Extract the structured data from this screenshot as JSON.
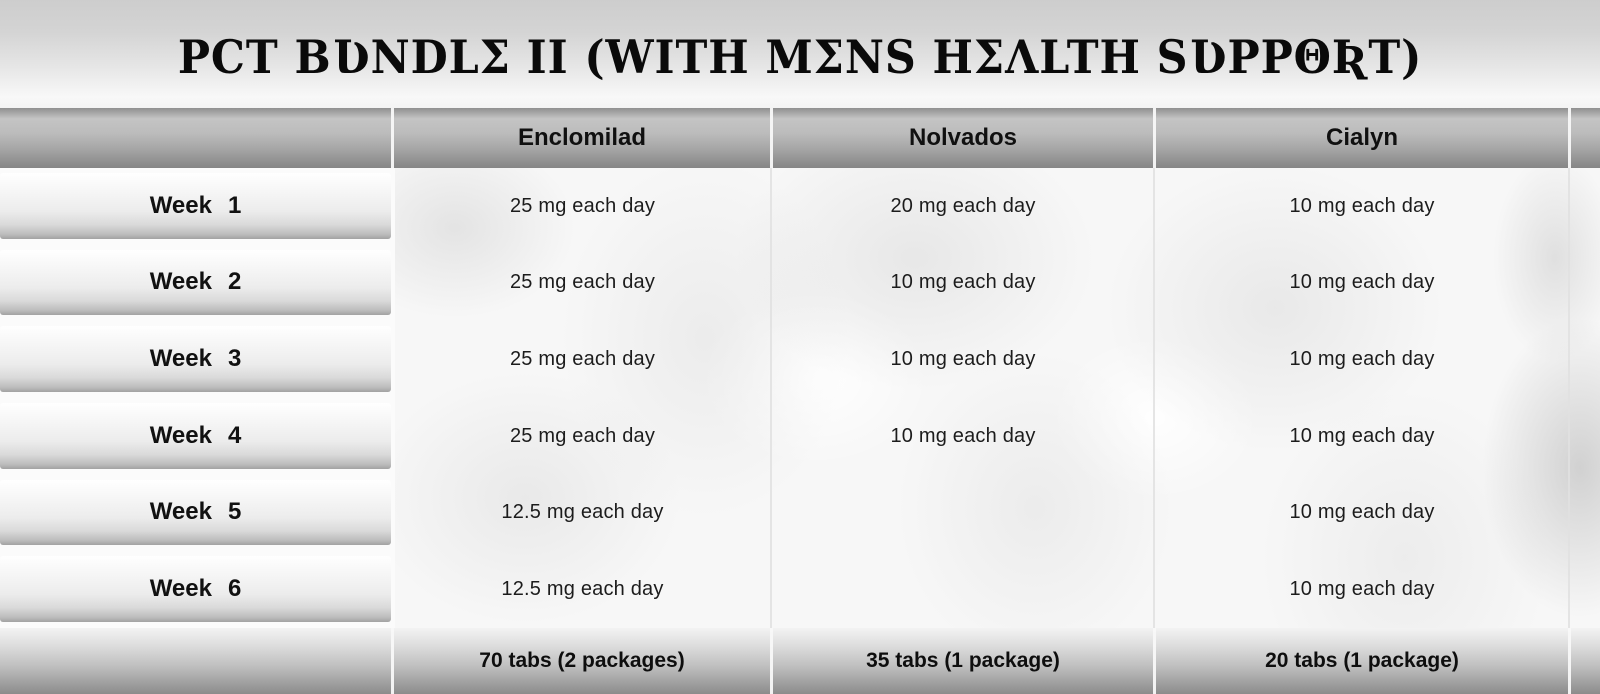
{
  "title": "PCT BƲNDLΣ II (WITH MΣNS HΣΛLTH SƲPPΘƦT)",
  "table": {
    "columns": [
      "Enclomilad",
      "Nolvados",
      "Cialyn"
    ],
    "rows": [
      {
        "week": "Week",
        "num": "1",
        "doses": [
          "25 mg each day",
          "20 mg each day",
          "10 mg each day"
        ]
      },
      {
        "week": "Week",
        "num": "2",
        "doses": [
          "25 mg each day",
          "10 mg each day",
          "10 mg each day"
        ]
      },
      {
        "week": "Week",
        "num": "3",
        "doses": [
          "25 mg each day",
          "10 mg each day",
          "10 mg each day"
        ]
      },
      {
        "week": "Week",
        "num": "4",
        "doses": [
          "25 mg each day",
          "10 mg each day",
          "10 mg each day"
        ]
      },
      {
        "week": "Week",
        "num": "5",
        "doses": [
          "12.5 mg each day",
          "",
          "10 mg each day"
        ]
      },
      {
        "week": "Week",
        "num": "6",
        "doses": [
          "12.5 mg each day",
          "",
          "10 mg each day"
        ]
      }
    ],
    "totals": [
      "70 tabs (2 packages)",
      "35 tabs (1 package)",
      "20 tabs (1 package)"
    ]
  },
  "colors": {
    "text": "#111111",
    "metal_dark": "#8a8a8a",
    "metal_light": "#c6c6c6",
    "background_light": "#fafafa"
  }
}
